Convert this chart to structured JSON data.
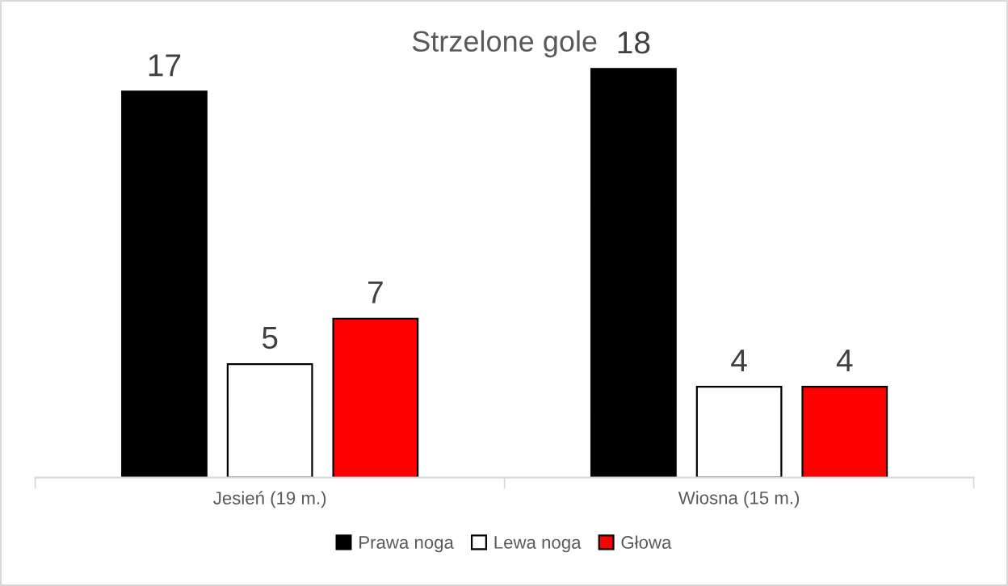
{
  "chart_data": {
    "type": "bar",
    "title": "Strzelone gole",
    "categories": [
      "Jesień (19 m.)",
      "Wiosna (15 m.)"
    ],
    "series": [
      {
        "name": "Prawa noga",
        "color": "#000000",
        "values": [
          17,
          18
        ]
      },
      {
        "name": "Lewa noga",
        "color": "#ffffff",
        "values": [
          5,
          4
        ]
      },
      {
        "name": "Głowa",
        "color": "#ff0000",
        "values": [
          7,
          4
        ]
      }
    ],
    "data_labels": true,
    "legend": "bottom",
    "grid": false
  }
}
